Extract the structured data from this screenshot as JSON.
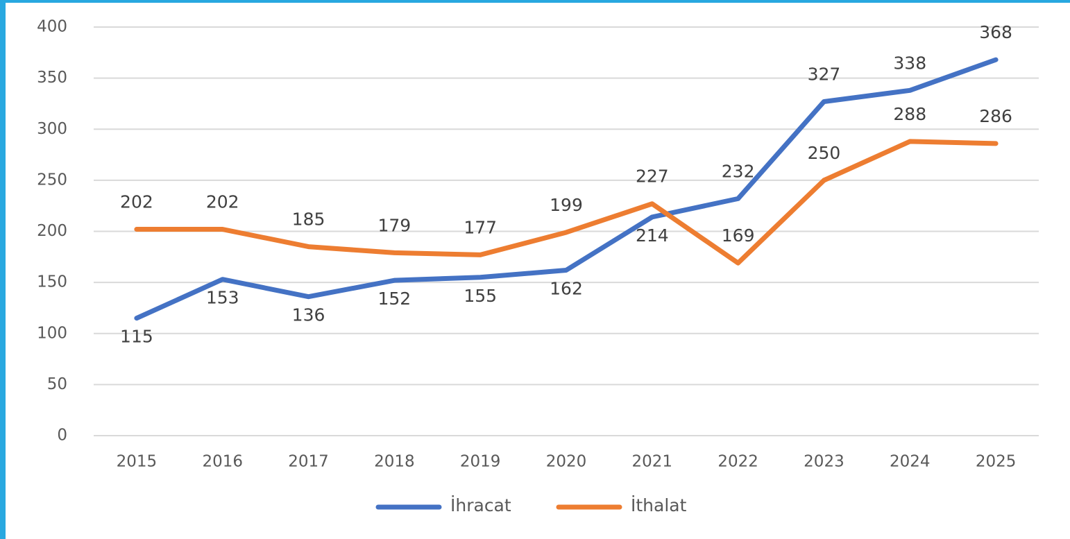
{
  "chart_data": {
    "type": "line",
    "categories": [
      "2015",
      "2016",
      "2017",
      "2018",
      "2019",
      "2020",
      "2021",
      "2022",
      "2023",
      "2024",
      "2025"
    ],
    "series": [
      {
        "name": "İhracat",
        "color": "#4472c4",
        "values": [
          115,
          153,
          136,
          152,
          155,
          162,
          214,
          232,
          327,
          338,
          368
        ]
      },
      {
        "name": "İthalat",
        "color": "#ed7d31",
        "values": [
          202,
          202,
          185,
          179,
          177,
          199,
          227,
          169,
          250,
          288,
          286
        ]
      }
    ],
    "ylim": [
      0,
      400
    ],
    "yticks": [
      0,
      50,
      100,
      150,
      200,
      250,
      300,
      350,
      400
    ],
    "grid": true,
    "legend": "bottom"
  }
}
